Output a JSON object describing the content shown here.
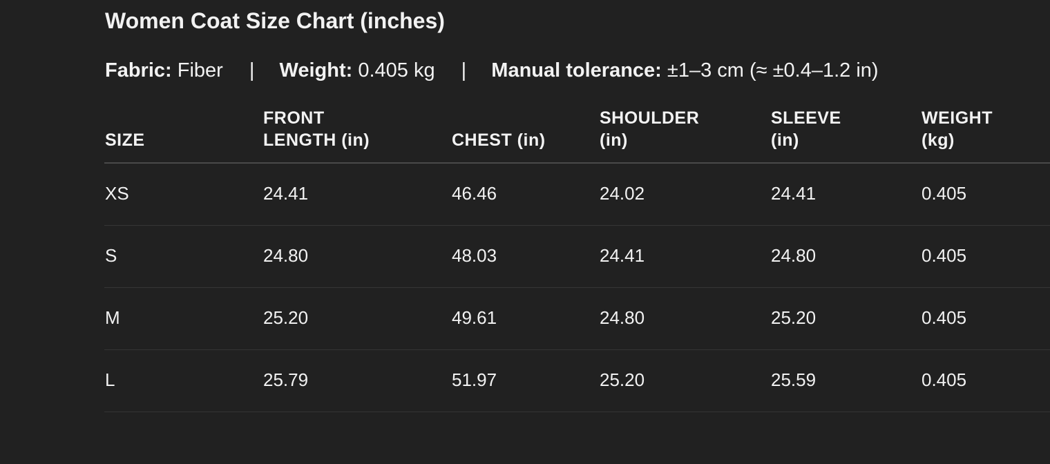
{
  "title": "Women Coat Size Chart (inches)",
  "meta": {
    "fabric_label": "Fabric:",
    "fabric_value": "Fiber",
    "weight_label": "Weight:",
    "weight_value": "0.405 kg",
    "tolerance_label": "Manual tolerance:",
    "tolerance_value": "±1–3 cm (≈ ±0.4–1.2 in)",
    "separator": "|"
  },
  "table": {
    "headers": [
      [
        "",
        "SIZE"
      ],
      [
        "FRONT",
        "LENGTH (in)"
      ],
      [
        "",
        "CHEST (in)"
      ],
      [
        "SHOULDER",
        "(in)"
      ],
      [
        "SLEEVE",
        "(in)"
      ],
      [
        "WEIGHT",
        "(kg)"
      ]
    ],
    "rows": [
      [
        "XS",
        "24.41",
        "46.46",
        "24.02",
        "24.41",
        "0.405"
      ],
      [
        "S",
        "24.80",
        "48.03",
        "24.41",
        "24.80",
        "0.405"
      ],
      [
        "M",
        "25.20",
        "49.61",
        "24.80",
        "25.20",
        "0.405"
      ],
      [
        "L",
        "25.79",
        "51.97",
        "25.20",
        "25.59",
        "0.405"
      ]
    ]
  }
}
